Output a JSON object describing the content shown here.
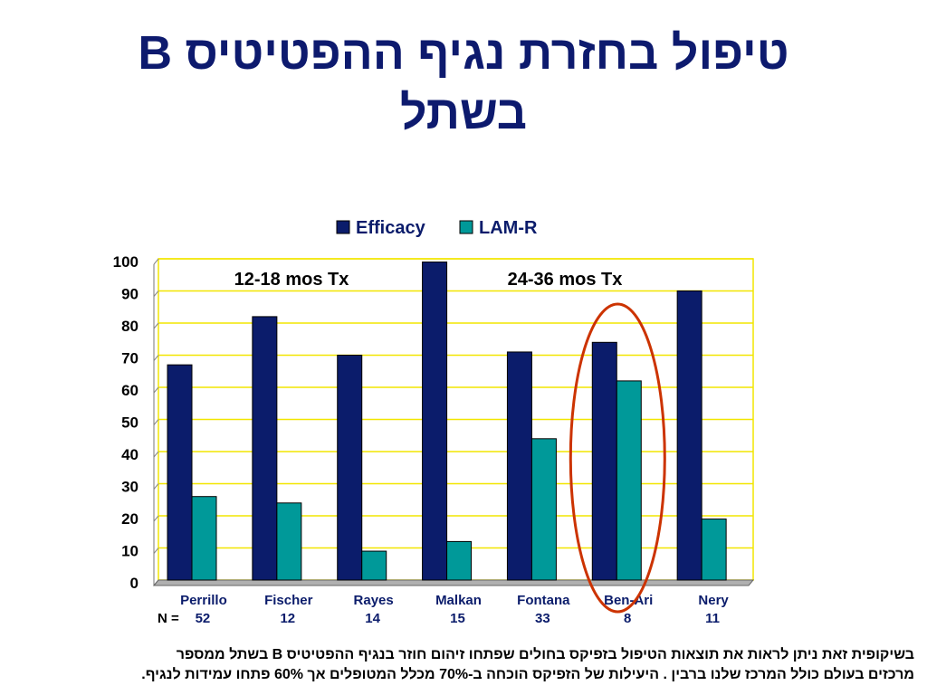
{
  "slide": {
    "title_line1": "טיפול בחזרת נגיף ההפטיטיס B",
    "title_line2": "בשתל",
    "footnote_line1": "בשיקופית זאת ניתן לראות את תוצאות הטיפול בזפיקס בחולים שפתחו זיהום חוזר בנגיף ההפטיטיס B בשתל ממספר",
    "footnote_line2": "מרכזים בעולם כולל המרכז שלנו ברבין . היעילות של הזפיקס הוכחה ב-70% מכלל המטופלים אך 60% פתחו עמידות לנגיף."
  },
  "chart_data": {
    "type": "bar",
    "categories": [
      "Perrillo",
      "Fischer",
      "Rayes",
      "Malkan",
      "Fontana",
      "Ben-Ari",
      "Nery"
    ],
    "n_prefix": "N =",
    "n_values": [
      "52",
      "12",
      "14",
      "15",
      "33",
      "8",
      "11"
    ],
    "series": [
      {
        "name": "Efficacy",
        "color": "#0b1c6b",
        "values": [
          67,
          82,
          70,
          99,
          71,
          74,
          90
        ]
      },
      {
        "name": "LAM-R",
        "color": "#009999",
        "values": [
          26,
          24,
          9,
          12,
          44,
          62,
          19
        ]
      }
    ],
    "ylim": [
      0,
      100
    ],
    "yticks": [
      0,
      10,
      20,
      30,
      40,
      50,
      60,
      70,
      80,
      90,
      100
    ],
    "grid": true,
    "grid_color": "#f2e600",
    "legend_position": "top",
    "annotations": [
      {
        "text": "12-18 mos Tx"
      },
      {
        "text": "24-36 mos Tx"
      }
    ],
    "highlight": {
      "category": "Ben-Ari",
      "shape": "ellipse",
      "color": "#cc3300"
    }
  }
}
